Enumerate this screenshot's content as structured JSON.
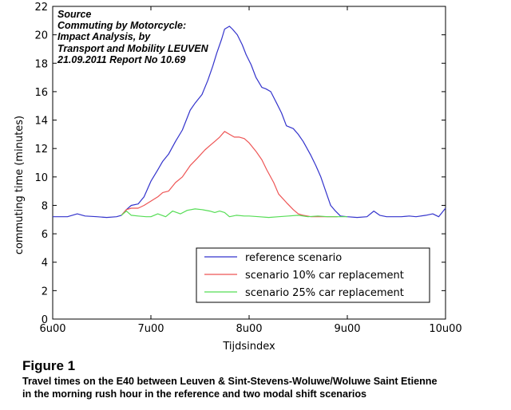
{
  "source_note": {
    "lines": [
      "Source",
      "Commuting by Motorcycle:",
      "Impact Analysis, by",
      "Transport and Mobility LEUVEN",
      "21.09.2011 Report No 10.69"
    ]
  },
  "figure": {
    "title": "Figure 1",
    "caption_lines": [
      "Travel times on the E40 between Leuven & Sint-Stevens-Woluwe/Woluwe Saint Etienne",
      "in the morning rush hour in the reference and two modal shift scenarios"
    ]
  },
  "chart_data": {
    "type": "line",
    "title": "",
    "xlabel": "Tijdsindex",
    "ylabel": "commuting time  (minutes)",
    "xlim": [
      6,
      10
    ],
    "ylim": [
      0,
      22
    ],
    "x_ticks": [
      6,
      7,
      8,
      9,
      10
    ],
    "x_tick_labels": [
      "6u00",
      "7u00",
      "8u00",
      "9u00",
      "10u00"
    ],
    "y_ticks": [
      0,
      2,
      4,
      6,
      8,
      10,
      12,
      14,
      16,
      18,
      20,
      22
    ],
    "y_tick_labels": [
      "0",
      "2",
      "4",
      "6",
      "8",
      "10",
      "12",
      "14",
      "16",
      "18",
      "20",
      "22"
    ],
    "legend_position": "bottom-right",
    "series": [
      {
        "name": "reference scenario",
        "color": "#3333cc",
        "x": [
          6.0,
          6.1,
          6.15,
          6.25,
          6.33,
          6.45,
          6.55,
          6.65,
          6.7,
          6.75,
          6.8,
          6.87,
          6.93,
          7.0,
          7.07,
          7.12,
          7.18,
          7.25,
          7.32,
          7.4,
          7.45,
          7.52,
          7.58,
          7.63,
          7.67,
          7.72,
          7.75,
          7.8,
          7.83,
          7.88,
          7.93,
          7.97,
          8.02,
          8.07,
          8.13,
          8.17,
          8.22,
          8.28,
          8.33,
          8.38,
          8.45,
          8.5,
          8.55,
          8.63,
          8.68,
          8.73,
          8.78,
          8.83,
          8.88,
          8.93,
          9.0,
          9.1,
          9.2,
          9.27,
          9.33,
          9.4,
          9.5,
          9.55,
          9.63,
          9.7,
          9.8,
          9.87,
          9.93,
          10.0
        ],
        "y": [
          7.2,
          7.2,
          7.2,
          7.4,
          7.25,
          7.2,
          7.15,
          7.2,
          7.3,
          7.7,
          8.0,
          8.1,
          8.6,
          9.7,
          10.5,
          11.1,
          11.6,
          12.5,
          13.3,
          14.7,
          15.2,
          15.8,
          16.8,
          17.8,
          18.7,
          19.7,
          20.4,
          20.6,
          20.4,
          20.0,
          19.3,
          18.6,
          17.9,
          17.0,
          16.3,
          16.2,
          16.0,
          15.2,
          14.5,
          13.6,
          13.4,
          13.0,
          12.5,
          11.5,
          10.8,
          10.0,
          9.0,
          8.0,
          7.6,
          7.25,
          7.2,
          7.15,
          7.2,
          7.6,
          7.3,
          7.2,
          7.2,
          7.2,
          7.25,
          7.2,
          7.3,
          7.4,
          7.2,
          7.8
        ]
      },
      {
        "name": "scenario 10% car replacement",
        "color": "#ee5555",
        "x": [
          6.7,
          6.75,
          6.8,
          6.87,
          6.93,
          7.0,
          7.07,
          7.12,
          7.18,
          7.25,
          7.32,
          7.4,
          7.47,
          7.55,
          7.6,
          7.65,
          7.7,
          7.75,
          7.8,
          7.85,
          7.9,
          7.95,
          8.0,
          8.07,
          8.13,
          8.18,
          8.25,
          8.3,
          8.38,
          8.45,
          8.5,
          8.55,
          8.63,
          8.7,
          8.8,
          8.9
        ],
        "y": [
          7.3,
          7.7,
          7.8,
          7.8,
          8.0,
          8.3,
          8.6,
          8.9,
          9.0,
          9.6,
          10.0,
          10.8,
          11.3,
          11.9,
          12.2,
          12.5,
          12.8,
          13.2,
          13.0,
          12.8,
          12.8,
          12.7,
          12.4,
          11.8,
          11.2,
          10.5,
          9.6,
          8.8,
          8.2,
          7.7,
          7.4,
          7.3,
          7.2,
          7.2,
          7.2,
          7.2
        ]
      },
      {
        "name": "scenario 25% car replacement",
        "color": "#55dd55",
        "x": [
          6.7,
          6.75,
          6.8,
          6.87,
          6.95,
          7.0,
          7.07,
          7.15,
          7.22,
          7.3,
          7.37,
          7.45,
          7.52,
          7.6,
          7.65,
          7.7,
          7.75,
          7.8,
          7.87,
          7.95,
          8.0,
          8.1,
          8.2,
          8.3,
          8.4,
          8.5,
          8.6,
          8.7,
          8.8,
          8.9,
          9.0
        ],
        "y": [
          7.3,
          7.6,
          7.3,
          7.25,
          7.2,
          7.2,
          7.4,
          7.2,
          7.6,
          7.4,
          7.65,
          7.75,
          7.7,
          7.6,
          7.5,
          7.6,
          7.5,
          7.2,
          7.3,
          7.25,
          7.25,
          7.2,
          7.15,
          7.2,
          7.25,
          7.3,
          7.2,
          7.25,
          7.2,
          7.2,
          7.2
        ]
      }
    ]
  }
}
